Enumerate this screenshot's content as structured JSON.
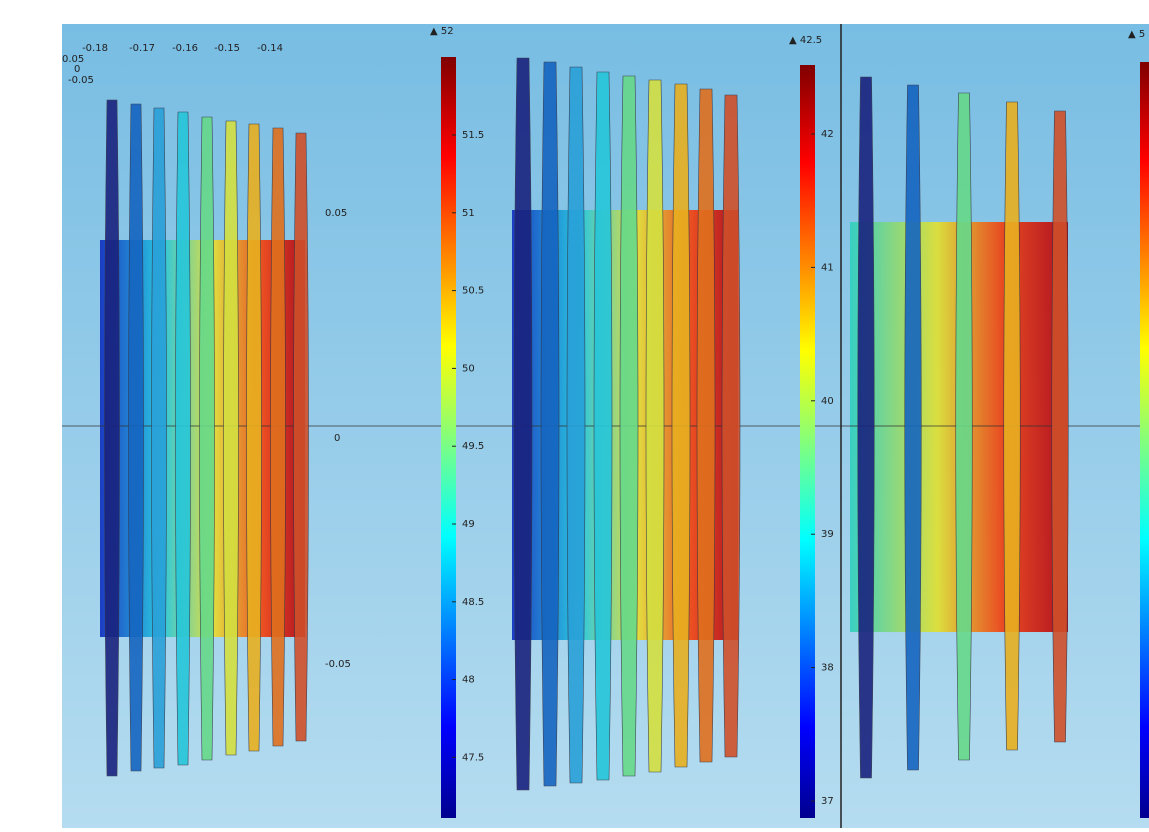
{
  "panels": [
    {
      "x_axis_labels": [
        "-0.18",
        "-0.17",
        "-0.16",
        "-0.15",
        "-0.14"
      ],
      "y_axis_labels_left": [
        "0.05",
        "0",
        "-0.05"
      ],
      "y_axis_labels_right": [
        "0.05",
        "0",
        "-0.05"
      ]
    }
  ],
  "colorbars": [
    {
      "max_label": "▲ 52",
      "tick_labels": [
        "51.5",
        "51",
        "50.5",
        "50",
        "49.5",
        "49",
        "48.5",
        "48",
        "47.5"
      ]
    },
    {
      "max_label": "▲ 42.5",
      "tick_labels": [
        "42",
        "41",
        "40",
        "39",
        "38",
        "37"
      ]
    },
    {
      "max_label": "▲ 5"
    }
  ]
}
